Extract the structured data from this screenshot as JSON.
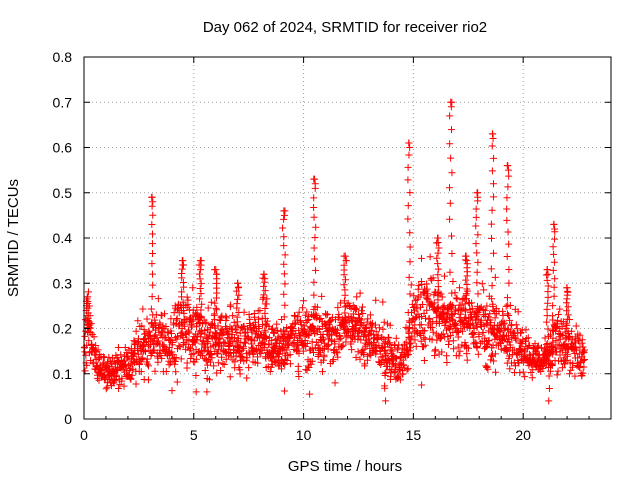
{
  "chart_data": {
    "type": "scatter",
    "title": "Day 062 of 2024, SRMTID for receiver rio2",
    "xlabel": "GPS time / hours",
    "ylabel": "SRMTID / TECUs",
    "xlim": [
      0,
      24
    ],
    "ylim": [
      0,
      0.8
    ],
    "x_ticks": [
      0,
      5,
      10,
      15,
      20
    ],
    "x_tick_labels": [
      "0",
      "5",
      "10",
      "15",
      "20"
    ],
    "y_ticks": [
      0,
      0.1,
      0.2,
      0.3,
      0.4,
      0.5,
      0.6,
      0.7,
      0.8
    ],
    "y_tick_labels": [
      "0",
      "0.1",
      "0.2",
      "0.3",
      "0.4",
      "0.5",
      "0.6",
      "0.7",
      "0.8"
    ],
    "grid": true,
    "marker": "plus",
    "point_color": "#ff0000",
    "x_range_data": [
      0,
      22.8
    ],
    "envelope": {
      "x": [
        0,
        0.2,
        0.5,
        1.0,
        1.5,
        2.0,
        2.5,
        3.0,
        3.5,
        4.0,
        4.5,
        5.0,
        5.5,
        6.0,
        6.5,
        7.0,
        7.5,
        8.0,
        8.5,
        9.0,
        9.5,
        10.0,
        10.5,
        11.0,
        11.5,
        12.0,
        12.5,
        13.0,
        13.5,
        14.0,
        14.5,
        15.0,
        15.5,
        16.0,
        16.5,
        17.0,
        17.5,
        18.0,
        18.5,
        19.0,
        19.5,
        20.0,
        20.5,
        21.0,
        21.5,
        22.0,
        22.5,
        22.8
      ],
      "median": [
        0.17,
        0.2,
        0.13,
        0.1,
        0.11,
        0.12,
        0.15,
        0.17,
        0.18,
        0.17,
        0.2,
        0.21,
        0.18,
        0.17,
        0.18,
        0.16,
        0.17,
        0.19,
        0.16,
        0.15,
        0.19,
        0.18,
        0.2,
        0.18,
        0.19,
        0.2,
        0.19,
        0.18,
        0.16,
        0.14,
        0.12,
        0.22,
        0.24,
        0.23,
        0.2,
        0.24,
        0.22,
        0.21,
        0.2,
        0.19,
        0.18,
        0.15,
        0.13,
        0.13,
        0.18,
        0.16,
        0.15,
        0.14
      ],
      "spread": [
        0.04,
        0.05,
        0.03,
        0.02,
        0.03,
        0.03,
        0.04,
        0.05,
        0.05,
        0.05,
        0.06,
        0.06,
        0.05,
        0.05,
        0.05,
        0.05,
        0.05,
        0.05,
        0.05,
        0.04,
        0.05,
        0.05,
        0.05,
        0.05,
        0.05,
        0.05,
        0.05,
        0.05,
        0.04,
        0.04,
        0.03,
        0.06,
        0.07,
        0.06,
        0.06,
        0.07,
        0.06,
        0.06,
        0.06,
        0.05,
        0.05,
        0.04,
        0.03,
        0.03,
        0.05,
        0.04,
        0.04,
        0.04
      ]
    },
    "spikes": [
      {
        "x": 0.15,
        "peak": 0.27
      },
      {
        "x": 3.1,
        "peak": 0.49
      },
      {
        "x": 4.5,
        "peak": 0.35
      },
      {
        "x": 5.3,
        "peak": 0.35
      },
      {
        "x": 6.0,
        "peak": 0.33
      },
      {
        "x": 7.0,
        "peak": 0.3
      },
      {
        "x": 8.2,
        "peak": 0.32
      },
      {
        "x": 9.1,
        "peak": 0.46
      },
      {
        "x": 10.5,
        "peak": 0.53
      },
      {
        "x": 11.9,
        "peak": 0.36
      },
      {
        "x": 14.8,
        "peak": 0.61
      },
      {
        "x": 16.1,
        "peak": 0.4
      },
      {
        "x": 16.7,
        "peak": 0.7
      },
      {
        "x": 17.4,
        "peak": 0.36
      },
      {
        "x": 17.9,
        "peak": 0.5
      },
      {
        "x": 18.6,
        "peak": 0.63
      },
      {
        "x": 19.3,
        "peak": 0.56
      },
      {
        "x": 21.1,
        "peak": 0.33
      },
      {
        "x": 21.4,
        "peak": 0.43
      },
      {
        "x": 22.0,
        "peak": 0.29
      }
    ],
    "dips": [
      {
        "x": 13.7,
        "low": 0.04
      },
      {
        "x": 21.2,
        "low": 0.04
      },
      {
        "x": 5.1,
        "low": 0.06
      },
      {
        "x": 5.6,
        "low": 0.06
      }
    ]
  }
}
